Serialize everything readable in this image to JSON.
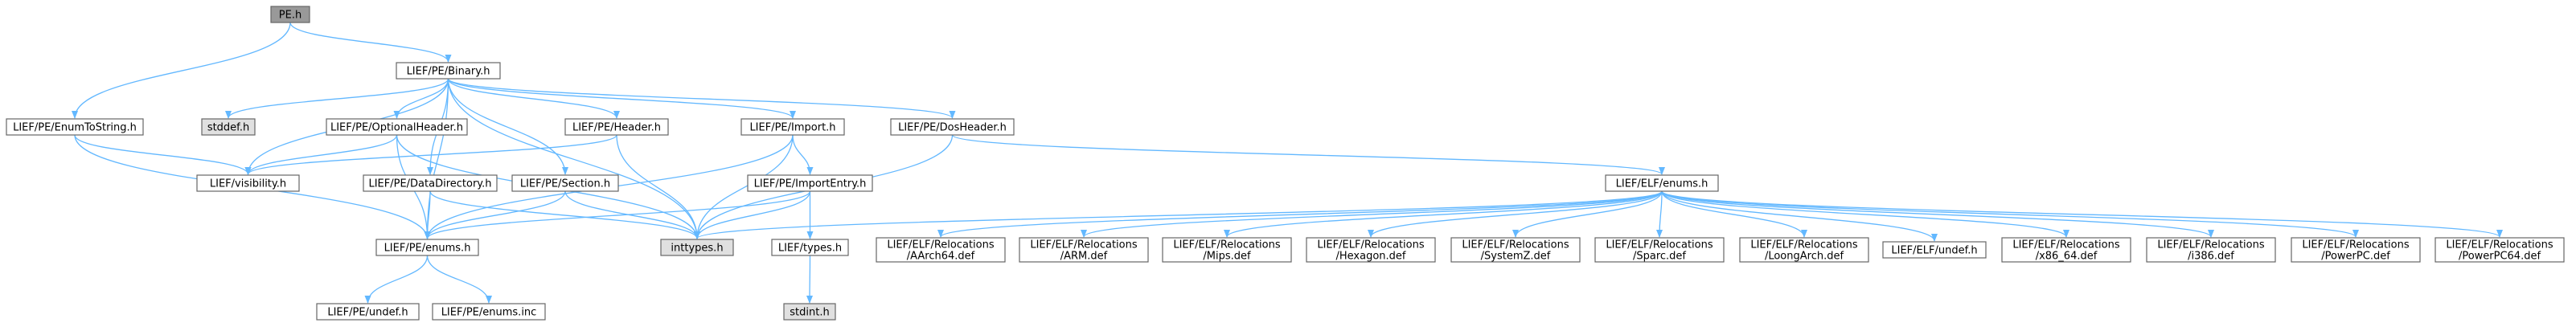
{
  "colors": {
    "edge": "#63b8ff",
    "node_fill": "#ffffff",
    "node_fill_external": "#e0e0e0",
    "node_fill_root": "#999999",
    "node_border": "#666666"
  },
  "nodes": [
    {
      "id": "pe_h",
      "lines": [
        "PE.h"
      ],
      "kind": "root"
    },
    {
      "id": "binary_h",
      "lines": [
        "LIEF/PE/Binary.h"
      ],
      "kind": "file"
    },
    {
      "id": "enumtostring_h",
      "lines": [
        "LIEF/PE/EnumToString.h"
      ],
      "kind": "file"
    },
    {
      "id": "stddef_h",
      "lines": [
        "stddef.h"
      ],
      "kind": "external"
    },
    {
      "id": "optionalheader_h",
      "lines": [
        "LIEF/PE/OptionalHeader.h"
      ],
      "kind": "file"
    },
    {
      "id": "header_h",
      "lines": [
        "LIEF/PE/Header.h"
      ],
      "kind": "file"
    },
    {
      "id": "import_h",
      "lines": [
        "LIEF/PE/Import.h"
      ],
      "kind": "file"
    },
    {
      "id": "dosheader_h",
      "lines": [
        "LIEF/PE/DosHeader.h"
      ],
      "kind": "file"
    },
    {
      "id": "visibility_h",
      "lines": [
        "LIEF/visibility.h"
      ],
      "kind": "file"
    },
    {
      "id": "datadirectory_h",
      "lines": [
        "LIEF/PE/DataDirectory.h"
      ],
      "kind": "file"
    },
    {
      "id": "section_h",
      "lines": [
        "LIEF/PE/Section.h"
      ],
      "kind": "file"
    },
    {
      "id": "importentry_h",
      "lines": [
        "LIEF/PE/ImportEntry.h"
      ],
      "kind": "file"
    },
    {
      "id": "elf_enums_h",
      "lines": [
        "LIEF/ELF/enums.h"
      ],
      "kind": "file"
    },
    {
      "id": "pe_enums_h",
      "lines": [
        "LIEF/PE/enums.h"
      ],
      "kind": "file"
    },
    {
      "id": "inttypes_h",
      "lines": [
        "inttypes.h"
      ],
      "kind": "external"
    },
    {
      "id": "types_h",
      "lines": [
        "LIEF/types.h"
      ],
      "kind": "file"
    },
    {
      "id": "rel_aarch64",
      "lines": [
        "LIEF/ELF/Relocations",
        "/AArch64.def"
      ],
      "kind": "file"
    },
    {
      "id": "rel_arm",
      "lines": [
        "LIEF/ELF/Relocations",
        "/ARM.def"
      ],
      "kind": "file"
    },
    {
      "id": "rel_mips",
      "lines": [
        "LIEF/ELF/Relocations",
        "/Mips.def"
      ],
      "kind": "file"
    },
    {
      "id": "rel_hexagon",
      "lines": [
        "LIEF/ELF/Relocations",
        "/Hexagon.def"
      ],
      "kind": "file"
    },
    {
      "id": "rel_systemz",
      "lines": [
        "LIEF/ELF/Relocations",
        "/SystemZ.def"
      ],
      "kind": "file"
    },
    {
      "id": "rel_sparc",
      "lines": [
        "LIEF/ELF/Relocations",
        "/Sparc.def"
      ],
      "kind": "file"
    },
    {
      "id": "rel_loongarch",
      "lines": [
        "LIEF/ELF/Relocations",
        "/LoongArch.def"
      ],
      "kind": "file"
    },
    {
      "id": "elf_undef_h",
      "lines": [
        "LIEF/ELF/undef.h"
      ],
      "kind": "file"
    },
    {
      "id": "rel_x86_64",
      "lines": [
        "LIEF/ELF/Relocations",
        "/x86_64.def"
      ],
      "kind": "file"
    },
    {
      "id": "rel_i386",
      "lines": [
        "LIEF/ELF/Relocations",
        "/i386.def"
      ],
      "kind": "file"
    },
    {
      "id": "rel_powerpc",
      "lines": [
        "LIEF/ELF/Relocations",
        "/PowerPC.def"
      ],
      "kind": "file"
    },
    {
      "id": "rel_powerpc64",
      "lines": [
        "LIEF/ELF/Relocations",
        "/PowerPC64.def"
      ],
      "kind": "file"
    },
    {
      "id": "pe_undef_h",
      "lines": [
        "LIEF/PE/undef.h"
      ],
      "kind": "file"
    },
    {
      "id": "pe_enums_inc",
      "lines": [
        "LIEF/PE/enums.inc"
      ],
      "kind": "file"
    },
    {
      "id": "stdint_h",
      "lines": [
        "stdint.h"
      ],
      "kind": "external"
    }
  ],
  "edges": [
    {
      "from": "pe_h",
      "to": "binary_h"
    },
    {
      "from": "pe_h",
      "to": "enumtostring_h"
    },
    {
      "from": "binary_h",
      "to": "stddef_h"
    },
    {
      "from": "binary_h",
      "to": "optionalheader_h"
    },
    {
      "from": "binary_h",
      "to": "header_h"
    },
    {
      "from": "binary_h",
      "to": "import_h"
    },
    {
      "from": "binary_h",
      "to": "dosheader_h"
    },
    {
      "from": "binary_h",
      "to": "visibility_h"
    },
    {
      "from": "binary_h",
      "to": "datadirectory_h"
    },
    {
      "from": "binary_h",
      "to": "section_h"
    },
    {
      "from": "binary_h",
      "to": "pe_enums_h"
    },
    {
      "from": "binary_h",
      "to": "inttypes_h"
    },
    {
      "from": "enumtostring_h",
      "to": "visibility_h"
    },
    {
      "from": "enumtostring_h",
      "to": "pe_enums_h"
    },
    {
      "from": "optionalheader_h",
      "to": "visibility_h"
    },
    {
      "from": "optionalheader_h",
      "to": "pe_enums_h"
    },
    {
      "from": "optionalheader_h",
      "to": "inttypes_h"
    },
    {
      "from": "header_h",
      "to": "visibility_h"
    },
    {
      "from": "header_h",
      "to": "inttypes_h"
    },
    {
      "from": "import_h",
      "to": "importentry_h"
    },
    {
      "from": "import_h",
      "to": "pe_enums_h"
    },
    {
      "from": "import_h",
      "to": "inttypes_h"
    },
    {
      "from": "dosheader_h",
      "to": "inttypes_h"
    },
    {
      "from": "dosheader_h",
      "to": "elf_enums_h"
    },
    {
      "from": "datadirectory_h",
      "to": "pe_enums_h"
    },
    {
      "from": "datadirectory_h",
      "to": "inttypes_h"
    },
    {
      "from": "section_h",
      "to": "pe_enums_h"
    },
    {
      "from": "section_h",
      "to": "inttypes_h"
    },
    {
      "from": "importentry_h",
      "to": "pe_enums_h"
    },
    {
      "from": "importentry_h",
      "to": "inttypes_h"
    },
    {
      "from": "importentry_h",
      "to": "types_h"
    },
    {
      "from": "elf_enums_h",
      "to": "inttypes_h"
    },
    {
      "from": "elf_enums_h",
      "to": "rel_aarch64"
    },
    {
      "from": "elf_enums_h",
      "to": "rel_arm"
    },
    {
      "from": "elf_enums_h",
      "to": "rel_mips"
    },
    {
      "from": "elf_enums_h",
      "to": "rel_hexagon"
    },
    {
      "from": "elf_enums_h",
      "to": "rel_systemz"
    },
    {
      "from": "elf_enums_h",
      "to": "rel_sparc"
    },
    {
      "from": "elf_enums_h",
      "to": "rel_loongarch"
    },
    {
      "from": "elf_enums_h",
      "to": "elf_undef_h"
    },
    {
      "from": "elf_enums_h",
      "to": "rel_x86_64"
    },
    {
      "from": "elf_enums_h",
      "to": "rel_i386"
    },
    {
      "from": "elf_enums_h",
      "to": "rel_powerpc"
    },
    {
      "from": "elf_enums_h",
      "to": "rel_powerpc64"
    },
    {
      "from": "pe_enums_h",
      "to": "pe_undef_h"
    },
    {
      "from": "pe_enums_h",
      "to": "pe_enums_inc"
    },
    {
      "from": "types_h",
      "to": "stdint_h"
    }
  ]
}
